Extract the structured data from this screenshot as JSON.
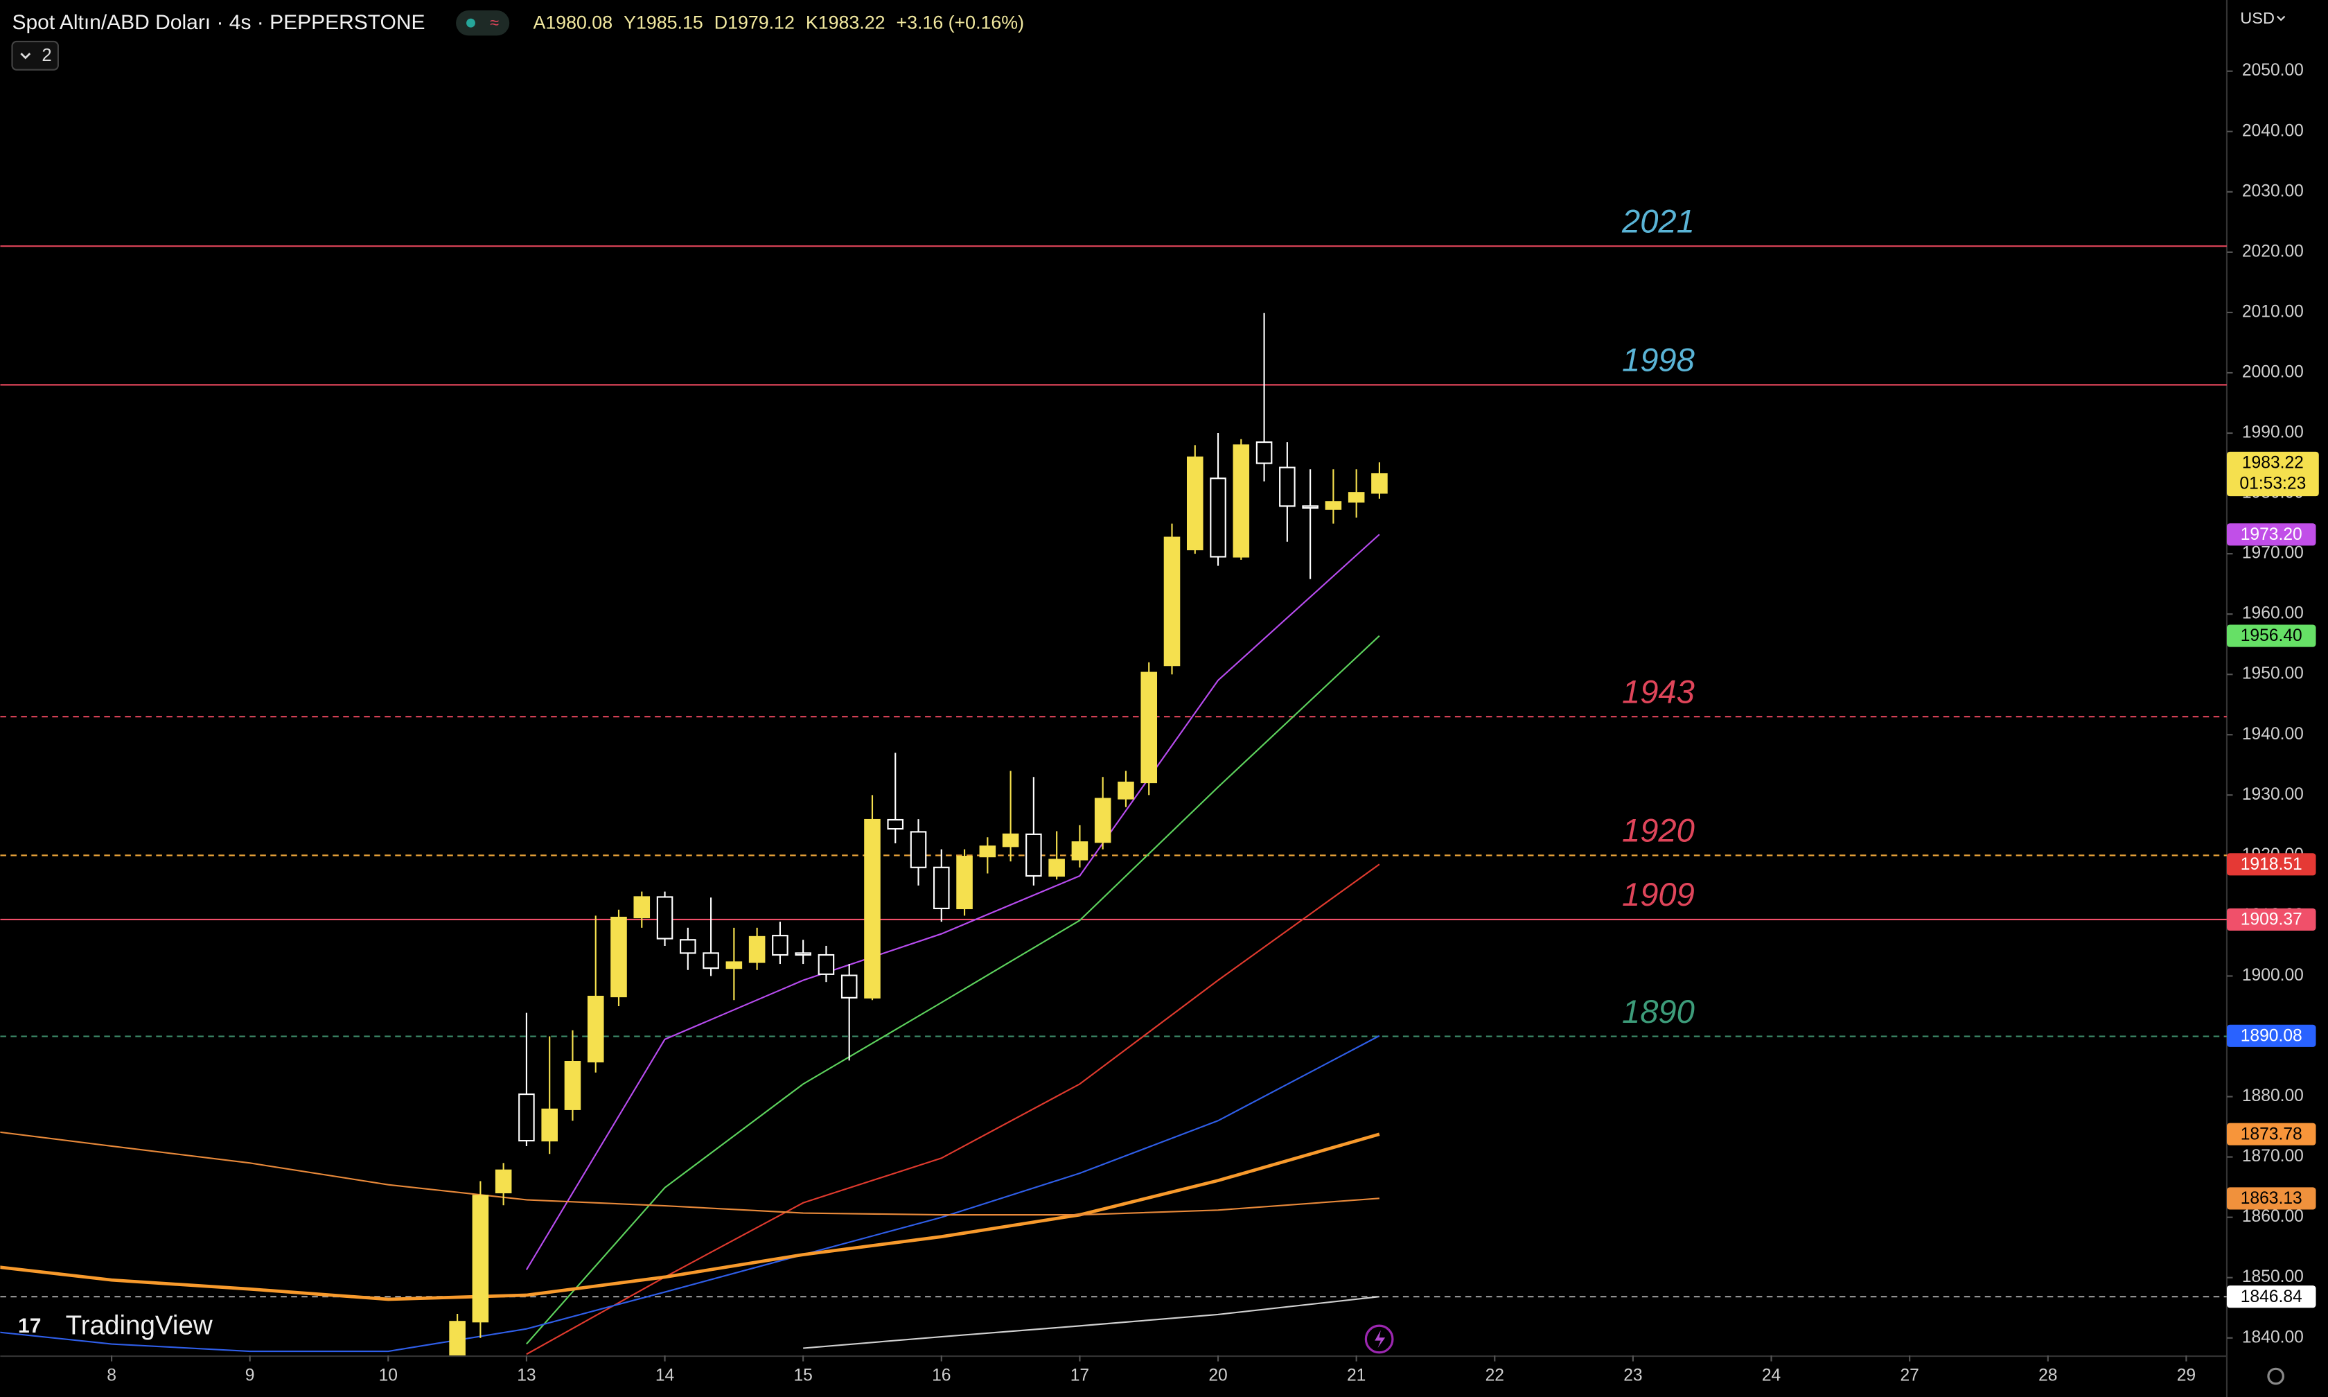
{
  "chart_data": {
    "type": "candlestick",
    "title": "Spot Altın/ABD Doları · 4s · PEPPERSTONE",
    "ohlc_labels": [
      "A",
      "Y",
      "D",
      "K"
    ],
    "change": "+3.16 (+0.16%)",
    "currency": "USD",
    "indicator_count": "2",
    "logo": "TradingView",
    "countdown": "01:53:23",
    "up_color": "#f5e04e",
    "down_color": "#ffffff",
    "x": [
      15,
      16,
      17,
      18,
      19,
      20,
      21,
      22,
      23,
      24,
      25,
      26,
      27,
      28,
      29,
      30,
      31,
      32,
      33,
      34,
      35,
      36,
      37,
      38,
      39,
      40,
      41,
      42,
      43,
      44,
      45,
      46,
      47,
      48,
      49,
      50,
      51,
      52,
      53,
      54,
      55
    ],
    "open": [
      1837.1,
      1842.7,
      1864.1,
      1880.4,
      1872.7,
      1877.9,
      1885.8,
      1896.6,
      1909.7,
      1913.1,
      1906.0,
      1903.8,
      1901.3,
      1902.3,
      1906.7,
      1903.8,
      1903.5,
      1900.1,
      1896.4,
      1925.9,
      1923.9,
      1918.0,
      1911.2,
      1919.8,
      1921.5,
      1923.5,
      1916.6,
      1919.3,
      1922.2,
      1929.4,
      1932.1,
      1951.5,
      1970.7,
      1982.5,
      1969.5,
      1988.5,
      1984.3,
      1977.9,
      1977.4,
      1978.6,
      1980.08
    ],
    "high": [
      1844,
      1866,
      1869,
      1893.9,
      1890,
      1891,
      1910,
      1911,
      1914,
      1914,
      1908,
      1913,
      1908,
      1908,
      1909,
      1906,
      1905,
      1902,
      1930,
      1937,
      1926,
      1921,
      1921,
      1923,
      1934,
      1933,
      1924,
      1925,
      1933,
      1934,
      1952,
      1975,
      1988,
      1990,
      1989,
      2009.9,
      1988.5,
      1984,
      1984,
      1984,
      1985.15
    ],
    "low": [
      1835,
      1840,
      1862,
      1871.8,
      1870.5,
      1876,
      1884,
      1895,
      1908,
      1905,
      1901,
      1900,
      1896,
      1901,
      1902,
      1902,
      1899,
      1886,
      1896,
      1922,
      1915,
      1909,
      1910,
      1917,
      1919,
      1915,
      1916,
      1918,
      1921,
      1928,
      1930,
      1950,
      1970,
      1968,
      1969,
      1982,
      1972,
      1965.8,
      1975,
      1976,
      1979.12
    ],
    "close": [
      1842.7,
      1863.6,
      1867.8,
      1872.7,
      1877.9,
      1885.8,
      1896.6,
      1909.7,
      1913.1,
      1906.2,
      1903.8,
      1901.3,
      1902.3,
      1906.5,
      1903.5,
      1903.5,
      1900.3,
      1896.4,
      1925.9,
      1924.4,
      1918.0,
      1911.2,
      1919.8,
      1921.5,
      1923.5,
      1916.6,
      1919.3,
      1922.2,
      1929.4,
      1932.1,
      1950.3,
      1972.7,
      1986.0,
      1969.5,
      1988.0,
      1985.0,
      1977.9,
      1977.6,
      1978.6,
      1980.1,
      1983.22
    ],
    "xlim": [
      -4.83,
      91.76
    ],
    "xticks": [
      {
        "value": 0,
        "label": "8"
      },
      {
        "value": 6,
        "label": "9"
      },
      {
        "value": 12,
        "label": "10"
      },
      {
        "value": 18,
        "label": "13"
      },
      {
        "value": 24,
        "label": "14"
      },
      {
        "value": 30,
        "label": "15"
      },
      {
        "value": 36,
        "label": "16"
      },
      {
        "value": 42,
        "label": "17"
      },
      {
        "value": 48,
        "label": "20"
      },
      {
        "value": 54,
        "label": "21"
      },
      {
        "value": 60,
        "label": "22"
      },
      {
        "value": 66,
        "label": "23"
      },
      {
        "value": 72,
        "label": "24"
      },
      {
        "value": 78,
        "label": "27"
      },
      {
        "value": 84,
        "label": "28"
      },
      {
        "value": 90,
        "label": "29"
      }
    ],
    "ylim": [
      1837.1,
      2061.8
    ],
    "yticks": [
      {
        "value": 1840,
        "label": "1840.00"
      },
      {
        "value": 1850,
        "label": "1850.00"
      },
      {
        "value": 1860,
        "label": "1860.00"
      },
      {
        "value": 1870,
        "label": "1870.00"
      },
      {
        "value": 1880,
        "label": "1880.00"
      },
      {
        "value": 1890,
        "label": "1890.00"
      },
      {
        "value": 1900,
        "label": "1900.00"
      },
      {
        "value": 1910,
        "label": "1910.00"
      },
      {
        "value": 1920,
        "label": "1920.00"
      },
      {
        "value": 1930,
        "label": "1930.00"
      },
      {
        "value": 1940,
        "label": "1940.00"
      },
      {
        "value": 1950,
        "label": "1950.00"
      },
      {
        "value": 1960,
        "label": "1960.00"
      },
      {
        "value": 1970,
        "label": "1970.00"
      },
      {
        "value": 1980,
        "label": "1980.00"
      },
      {
        "value": 1990,
        "label": "1990.00"
      },
      {
        "value": 2000,
        "label": "2000.00"
      },
      {
        "value": 2010,
        "label": "2010.00"
      },
      {
        "value": 2020,
        "label": "2020.00"
      },
      {
        "value": 2030,
        "label": "2030.00"
      },
      {
        "value": 2040,
        "label": "2040.00"
      },
      {
        "value": 2050,
        "label": "2050.00"
      }
    ],
    "lines": [
      {
        "color": "#b84cf0",
        "width": 1,
        "tag": "1973.20",
        "tag_color": "#c14fe8",
        "x": [
          -5,
          0,
          6,
          12,
          18,
          24,
          30,
          36,
          42,
          48,
          55
        ],
        "values": [
          null,
          null,
          null,
          null,
          1851.3,
          1889.5,
          1899.3,
          1907,
          1916.6,
          1949,
          1973.2
        ]
      },
      {
        "color": "#5dd35d",
        "width": 1,
        "tag": "1956.40",
        "tag_color": "#66e066",
        "x": [
          -5,
          0,
          6,
          12,
          18,
          24,
          30,
          36,
          42,
          48,
          55
        ],
        "values": [
          null,
          null,
          null,
          null,
          1839,
          1864.9,
          1882.1,
          1895.6,
          1909.2,
          1931.3,
          1956.4
        ]
      },
      {
        "color": "#e03a2e",
        "width": 1,
        "tag": "1918.51",
        "tag_color": "#e53935",
        "x": [
          -5,
          0,
          6,
          12,
          18,
          24,
          30,
          36,
          42,
          48,
          55
        ],
        "values": [
          null,
          null,
          null,
          null,
          1837.3,
          1850.1,
          1862.4,
          1869.8,
          1882.1,
          1899.3,
          1918.51
        ]
      },
      {
        "color": "#2f5ee8",
        "width": 1,
        "tag": "1890.08",
        "tag_color": "#2962ff",
        "x": [
          -5,
          0,
          6,
          12,
          18,
          24,
          30,
          36,
          42,
          48,
          55
        ],
        "values": [
          1841,
          1839,
          1837.8,
          1837.8,
          1841.5,
          1847.6,
          1853.8,
          1860,
          1867.3,
          1876,
          1890.08
        ]
      },
      {
        "color": "#f89a2c",
        "width": 2.2,
        "tag": "1873.78",
        "tag_color": "#f7953a",
        "x": [
          -5,
          0,
          6,
          12,
          18,
          24,
          30,
          36,
          42,
          48,
          55
        ],
        "values": [
          1851.8,
          1849.6,
          1848.1,
          1846.4,
          1847.1,
          1850.1,
          1853.8,
          1856.8,
          1860.4,
          1866.1,
          1873.78
        ]
      },
      {
        "color": "#e8893a",
        "width": 1,
        "tag": "1863.13",
        "tag_color": "#f0913c",
        "x": [
          -5,
          0,
          6,
          12,
          18,
          24,
          30,
          36,
          42,
          48,
          55
        ],
        "values": [
          1874.2,
          1871.8,
          1869,
          1865.4,
          1862.9,
          1861.9,
          1860.7,
          1860.4,
          1860.4,
          1861.2,
          1863.13
        ]
      },
      {
        "color": "#d0d0d0",
        "width": 1,
        "tag": "1846.84",
        "tag_color": "#ffffff",
        "x": [
          -5,
          0,
          6,
          12,
          18,
          24,
          30,
          36,
          42,
          48,
          55
        ],
        "values": [
          null,
          null,
          null,
          null,
          null,
          null,
          1838.3,
          1840.2,
          1842,
          1843.9,
          1846.84
        ]
      }
    ],
    "levels": [
      {
        "value": 2021,
        "label": "2021",
        "color": "#e0455a",
        "dashed": false,
        "label_color": "#5ab4d6"
      },
      {
        "value": 1998,
        "label": "1998",
        "color": "#e0455a",
        "dashed": false,
        "label_color": "#5ab4d6"
      },
      {
        "value": 1943,
        "label": "1943",
        "color": "#e0455a",
        "dashed": true,
        "label_color": "#e0455a"
      },
      {
        "value": 1920,
        "label": "1920",
        "color": "#e8a23a",
        "dashed": true,
        "label_color": "#e0455a"
      },
      {
        "value": 1909.37,
        "label": "1909",
        "color": "#f0506a",
        "dashed": false,
        "label_color": "#e0455a",
        "tag": "1909.37"
      },
      {
        "value": 1890,
        "label": "1890",
        "color": "#3d8c6a",
        "dashed": true,
        "label_color": "#3d9c7a"
      },
      {
        "value": 1846.84,
        "color": "#9a9a9a",
        "dashed": true
      }
    ]
  }
}
